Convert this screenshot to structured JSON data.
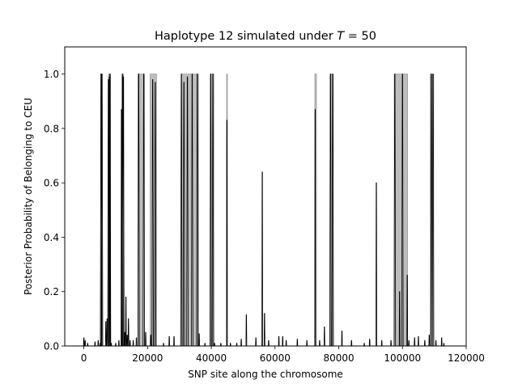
{
  "chart_data": {
    "type": "line",
    "title_prefix": "Haplotype 12 simulated under ",
    "title_var": "T",
    "title_suffix": " =  50",
    "xlabel": "SNP site along the chromosome",
    "ylabel": "Posterior Probability of Belonging to CEU",
    "xlim": [
      -6000,
      120000
    ],
    "ylim": [
      0,
      1.1
    ],
    "xticks": [
      0,
      20000,
      40000,
      60000,
      80000,
      100000,
      120000
    ],
    "xtick_labels": [
      "0",
      "20000",
      "40000",
      "60000",
      "80000",
      "100000",
      "120000"
    ],
    "yticks": [
      0,
      0.2,
      0.4,
      0.6,
      0.8,
      1.0
    ],
    "ytick_labels": [
      "0.0",
      "0.2",
      "0.4",
      "0.6",
      "0.8",
      "1.0"
    ],
    "grid": false,
    "colors": {
      "true_ancestry_fill": "#bdbdbd",
      "true_ancestry_edge": "#9a9a9a",
      "posterior": "#000000",
      "axes": "#000000"
    },
    "true_ceu_segments": [
      [
        5300,
        5700
      ],
      [
        7700,
        8400
      ],
      [
        12000,
        12500
      ],
      [
        17000,
        19000
      ],
      [
        20800,
        22800
      ],
      [
        30600,
        36000
      ],
      [
        39700,
        40800
      ],
      [
        44800,
        45000
      ],
      [
        72500,
        73000
      ],
      [
        77300,
        78300
      ],
      [
        97400,
        101600
      ],
      [
        108700,
        109800
      ]
    ],
    "posterior_peaks": [
      [
        0,
        0.03
      ],
      [
        400,
        0.02
      ],
      [
        1200,
        0.01
      ],
      [
        3500,
        0.015
      ],
      [
        4500,
        0.02
      ],
      [
        5100,
        0.01
      ],
      [
        5400,
        1.0
      ],
      [
        5700,
        1.0
      ],
      [
        6900,
        0.09
      ],
      [
        7300,
        0.1
      ],
      [
        7700,
        0.98
      ],
      [
        8000,
        0.99
      ],
      [
        8200,
        1.0
      ],
      [
        8600,
        0.01
      ],
      [
        10000,
        0.01
      ],
      [
        11000,
        0.02
      ],
      [
        11800,
        0.87
      ],
      [
        12100,
        1.0
      ],
      [
        12400,
        0.99
      ],
      [
        12900,
        0.05
      ],
      [
        13200,
        0.18
      ],
      [
        13600,
        0.04
      ],
      [
        14000,
        0.1
      ],
      [
        14500,
        0.02
      ],
      [
        15500,
        0.02
      ],
      [
        16500,
        0.03
      ],
      [
        17200,
        1.0
      ],
      [
        18800,
        1.0
      ],
      [
        19400,
        0.05
      ],
      [
        21000,
        0.04
      ],
      [
        21600,
        0.98
      ],
      [
        22400,
        0.97
      ],
      [
        25000,
        0.01
      ],
      [
        26800,
        0.035
      ],
      [
        28300,
        0.035
      ],
      [
        30600,
        1.0
      ],
      [
        31400,
        0.97
      ],
      [
        32500,
        0.99
      ],
      [
        34000,
        1.0
      ],
      [
        35600,
        1.0
      ],
      [
        36200,
        0.045
      ],
      [
        38000,
        0.01
      ],
      [
        39800,
        1.0
      ],
      [
        40500,
        1.0
      ],
      [
        41000,
        0.01
      ],
      [
        43000,
        0.01
      ],
      [
        44900,
        0.83
      ],
      [
        46000,
        0.01
      ],
      [
        48000,
        0.01
      ],
      [
        49400,
        0.025
      ],
      [
        51000,
        0.115
      ],
      [
        54000,
        0.03
      ],
      [
        56000,
        0.64
      ],
      [
        56700,
        0.12
      ],
      [
        58000,
        0.02
      ],
      [
        61200,
        0.035
      ],
      [
        62400,
        0.035
      ],
      [
        63500,
        0.02
      ],
      [
        67000,
        0.025
      ],
      [
        70000,
        0.02
      ],
      [
        72600,
        0.87
      ],
      [
        74000,
        0.02
      ],
      [
        75500,
        0.07
      ],
      [
        77400,
        1.0
      ],
      [
        78100,
        1.0
      ],
      [
        81000,
        0.055
      ],
      [
        84000,
        0.02
      ],
      [
        88000,
        0.01
      ],
      [
        89700,
        0.025
      ],
      [
        91800,
        0.6
      ],
      [
        93500,
        0.02
      ],
      [
        96400,
        0.02
      ],
      [
        97600,
        1.0
      ],
      [
        99100,
        0.2
      ],
      [
        100000,
        1.0
      ],
      [
        101500,
        0.26
      ],
      [
        102000,
        0.02
      ],
      [
        103800,
        0.03
      ],
      [
        105000,
        0.035
      ],
      [
        107000,
        0.02
      ],
      [
        108400,
        0.04
      ],
      [
        109100,
        1.0
      ],
      [
        109600,
        1.0
      ],
      [
        110500,
        0.02
      ],
      [
        112300,
        0.03
      ],
      [
        113000,
        0.01
      ]
    ]
  }
}
